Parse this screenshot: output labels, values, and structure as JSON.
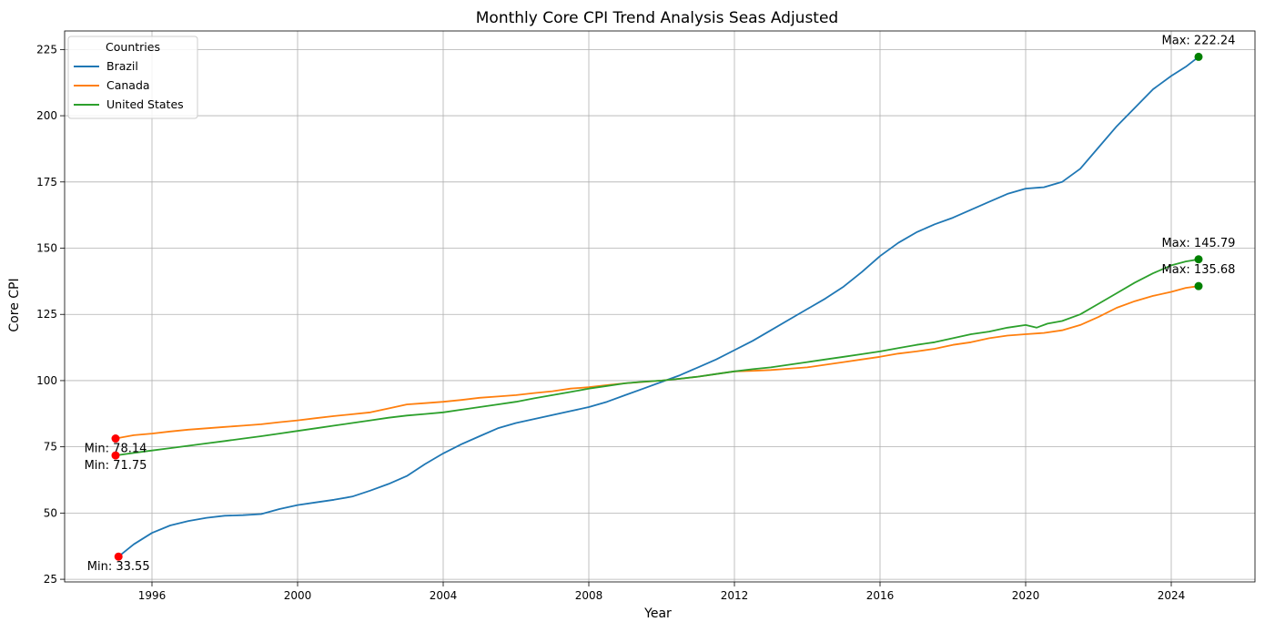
{
  "chart_data": {
    "type": "line",
    "title": "Monthly Core CPI Trend Analysis Seas Adjusted",
    "xlabel": "Year",
    "ylabel": "Core CPI",
    "xlim": [
      1993.6,
      2026.3
    ],
    "ylim": [
      24,
      232
    ],
    "xticks": [
      1996,
      2000,
      2004,
      2008,
      2012,
      2016,
      2020,
      2024
    ],
    "yticks": [
      25,
      50,
      75,
      100,
      125,
      150,
      175,
      200,
      225
    ],
    "grid": true,
    "legend": {
      "title": "Countries",
      "position": "top-left"
    },
    "series": [
      {
        "name": "Brazil",
        "color": "#1f77b4",
        "points": [
          [
            1995.08,
            33.55
          ],
          [
            1995.5,
            38.2
          ],
          [
            1996.0,
            42.5
          ],
          [
            1996.5,
            45.3
          ],
          [
            1997.0,
            47.0
          ],
          [
            1997.5,
            48.2
          ],
          [
            1998.0,
            49.0
          ],
          [
            1998.5,
            49.2
          ],
          [
            1999.0,
            49.6
          ],
          [
            1999.5,
            51.5
          ],
          [
            2000.0,
            53.0
          ],
          [
            2000.5,
            54.0
          ],
          [
            2001.0,
            55.0
          ],
          [
            2001.5,
            56.2
          ],
          [
            2002.0,
            58.5
          ],
          [
            2002.5,
            61.0
          ],
          [
            2003.0,
            64.0
          ],
          [
            2003.5,
            68.5
          ],
          [
            2004.0,
            72.5
          ],
          [
            2004.5,
            76.0
          ],
          [
            2005.0,
            79.0
          ],
          [
            2005.5,
            82.0
          ],
          [
            2006.0,
            84.0
          ],
          [
            2006.5,
            85.5
          ],
          [
            2007.0,
            87.0
          ],
          [
            2007.5,
            88.5
          ],
          [
            2008.0,
            90.0
          ],
          [
            2008.5,
            92.0
          ],
          [
            2009.0,
            94.5
          ],
          [
            2009.5,
            97.0
          ],
          [
            2010.0,
            99.5
          ],
          [
            2010.5,
            102.0
          ],
          [
            2011.0,
            105.0
          ],
          [
            2011.5,
            108.0
          ],
          [
            2012.0,
            111.5
          ],
          [
            2012.5,
            115.0
          ],
          [
            2013.0,
            119.0
          ],
          [
            2013.5,
            123.0
          ],
          [
            2014.0,
            127.0
          ],
          [
            2014.5,
            131.0
          ],
          [
            2015.0,
            135.5
          ],
          [
            2015.5,
            141.0
          ],
          [
            2016.0,
            147.0
          ],
          [
            2016.5,
            152.0
          ],
          [
            2017.0,
            156.0
          ],
          [
            2017.5,
            159.0
          ],
          [
            2018.0,
            161.5
          ],
          [
            2018.5,
            164.5
          ],
          [
            2019.0,
            167.5
          ],
          [
            2019.5,
            170.5
          ],
          [
            2020.0,
            172.5
          ],
          [
            2020.5,
            173.0
          ],
          [
            2021.0,
            175.0
          ],
          [
            2021.5,
            180.0
          ],
          [
            2022.0,
            188.0
          ],
          [
            2022.5,
            196.0
          ],
          [
            2023.0,
            203.0
          ],
          [
            2023.5,
            210.0
          ],
          [
            2024.0,
            215.0
          ],
          [
            2024.4,
            218.5
          ],
          [
            2024.75,
            222.24
          ]
        ],
        "min": {
          "x": 1995.08,
          "y": 33.55,
          "label": "Min: 33.55"
        },
        "max": {
          "x": 2024.75,
          "y": 222.24,
          "label": "Max: 222.24"
        }
      },
      {
        "name": "Canada",
        "color": "#ff7f0e",
        "points": [
          [
            1995.0,
            78.14
          ],
          [
            1995.5,
            79.4
          ],
          [
            1996.0,
            80.0
          ],
          [
            1996.5,
            80.8
          ],
          [
            1997.0,
            81.5
          ],
          [
            1997.5,
            82.0
          ],
          [
            1998.0,
            82.5
          ],
          [
            1998.5,
            83.0
          ],
          [
            1999.0,
            83.5
          ],
          [
            1999.5,
            84.3
          ],
          [
            2000.0,
            85.0
          ],
          [
            2000.5,
            85.8
          ],
          [
            2001.0,
            86.6
          ],
          [
            2001.5,
            87.3
          ],
          [
            2002.0,
            88.0
          ],
          [
            2002.5,
            89.5
          ],
          [
            2003.0,
            91.0
          ],
          [
            2003.5,
            91.5
          ],
          [
            2004.0,
            92.0
          ],
          [
            2004.5,
            92.7
          ],
          [
            2005.0,
            93.5
          ],
          [
            2005.5,
            94.0
          ],
          [
            2006.0,
            94.5
          ],
          [
            2006.5,
            95.3
          ],
          [
            2007.0,
            96.0
          ],
          [
            2007.5,
            97.0
          ],
          [
            2008.0,
            97.5
          ],
          [
            2008.5,
            98.3
          ],
          [
            2009.0,
            99.0
          ],
          [
            2009.5,
            99.5
          ],
          [
            2010.0,
            100.0
          ],
          [
            2010.5,
            100.7
          ],
          [
            2011.0,
            101.5
          ],
          [
            2011.5,
            102.5
          ],
          [
            2012.0,
            103.5
          ],
          [
            2012.5,
            103.7
          ],
          [
            2013.0,
            104.0
          ],
          [
            2013.5,
            104.5
          ],
          [
            2014.0,
            105.0
          ],
          [
            2014.5,
            106.0
          ],
          [
            2015.0,
            107.0
          ],
          [
            2015.5,
            108.0
          ],
          [
            2016.0,
            109.0
          ],
          [
            2016.5,
            110.2
          ],
          [
            2017.0,
            111.0
          ],
          [
            2017.5,
            112.0
          ],
          [
            2018.0,
            113.5
          ],
          [
            2018.5,
            114.5
          ],
          [
            2019.0,
            116.0
          ],
          [
            2019.5,
            117.0
          ],
          [
            2020.0,
            117.5
          ],
          [
            2020.5,
            118.0
          ],
          [
            2021.0,
            119.0
          ],
          [
            2021.5,
            121.0
          ],
          [
            2022.0,
            124.0
          ],
          [
            2022.5,
            127.5
          ],
          [
            2023.0,
            130.0
          ],
          [
            2023.5,
            132.0
          ],
          [
            2024.0,
            133.5
          ],
          [
            2024.4,
            135.0
          ],
          [
            2024.75,
            135.68
          ]
        ],
        "min": {
          "x": 1995.0,
          "y": 78.14,
          "label": "Min: 78.14"
        },
        "max": {
          "x": 2024.75,
          "y": 135.68,
          "label": "Max: 135.68"
        }
      },
      {
        "name": "United States",
        "color": "#2ca02c",
        "points": [
          [
            1995.0,
            71.75
          ],
          [
            1995.5,
            72.7
          ],
          [
            1996.0,
            73.6
          ],
          [
            1996.5,
            74.5
          ],
          [
            1997.0,
            75.4
          ],
          [
            1997.5,
            76.3
          ],
          [
            1998.0,
            77.2
          ],
          [
            1998.5,
            78.1
          ],
          [
            1999.0,
            79.0
          ],
          [
            1999.5,
            80.0
          ],
          [
            2000.0,
            81.0
          ],
          [
            2000.5,
            82.0
          ],
          [
            2001.0,
            83.0
          ],
          [
            2001.5,
            84.0
          ],
          [
            2002.0,
            85.0
          ],
          [
            2002.5,
            86.0
          ],
          [
            2003.0,
            86.8
          ],
          [
            2003.5,
            87.4
          ],
          [
            2004.0,
            88.0
          ],
          [
            2004.5,
            89.0
          ],
          [
            2005.0,
            90.0
          ],
          [
            2005.5,
            91.0
          ],
          [
            2006.0,
            92.0
          ],
          [
            2006.5,
            93.3
          ],
          [
            2007.0,
            94.5
          ],
          [
            2007.5,
            95.7
          ],
          [
            2008.0,
            97.0
          ],
          [
            2008.5,
            98.0
          ],
          [
            2009.0,
            99.0
          ],
          [
            2009.5,
            99.6
          ],
          [
            2010.0,
            100.0
          ],
          [
            2010.5,
            100.7
          ],
          [
            2011.0,
            101.5
          ],
          [
            2011.5,
            102.5
          ],
          [
            2012.0,
            103.5
          ],
          [
            2012.5,
            104.3
          ],
          [
            2013.0,
            105.0
          ],
          [
            2013.5,
            106.0
          ],
          [
            2014.0,
            107.0
          ],
          [
            2014.5,
            108.0
          ],
          [
            2015.0,
            109.0
          ],
          [
            2015.5,
            110.0
          ],
          [
            2016.0,
            111.0
          ],
          [
            2016.5,
            112.3
          ],
          [
            2017.0,
            113.5
          ],
          [
            2017.5,
            114.5
          ],
          [
            2018.0,
            116.0
          ],
          [
            2018.5,
            117.5
          ],
          [
            2019.0,
            118.5
          ],
          [
            2019.5,
            120.0
          ],
          [
            2020.0,
            121.0
          ],
          [
            2020.3,
            120.0
          ],
          [
            2020.6,
            121.5
          ],
          [
            2021.0,
            122.5
          ],
          [
            2021.5,
            125.0
          ],
          [
            2022.0,
            129.0
          ],
          [
            2022.5,
            133.0
          ],
          [
            2023.0,
            137.0
          ],
          [
            2023.5,
            140.5
          ],
          [
            2024.0,
            143.5
          ],
          [
            2024.4,
            145.0
          ],
          [
            2024.75,
            145.79
          ]
        ],
        "min": {
          "x": 1995.0,
          "y": 71.75,
          "label": "Min: 71.75"
        },
        "max": {
          "x": 2024.75,
          "y": 145.79,
          "label": "Max: 145.79"
        }
      }
    ],
    "annotation_colors": {
      "min_marker": "#ff0000",
      "max_marker": "#008000"
    }
  }
}
